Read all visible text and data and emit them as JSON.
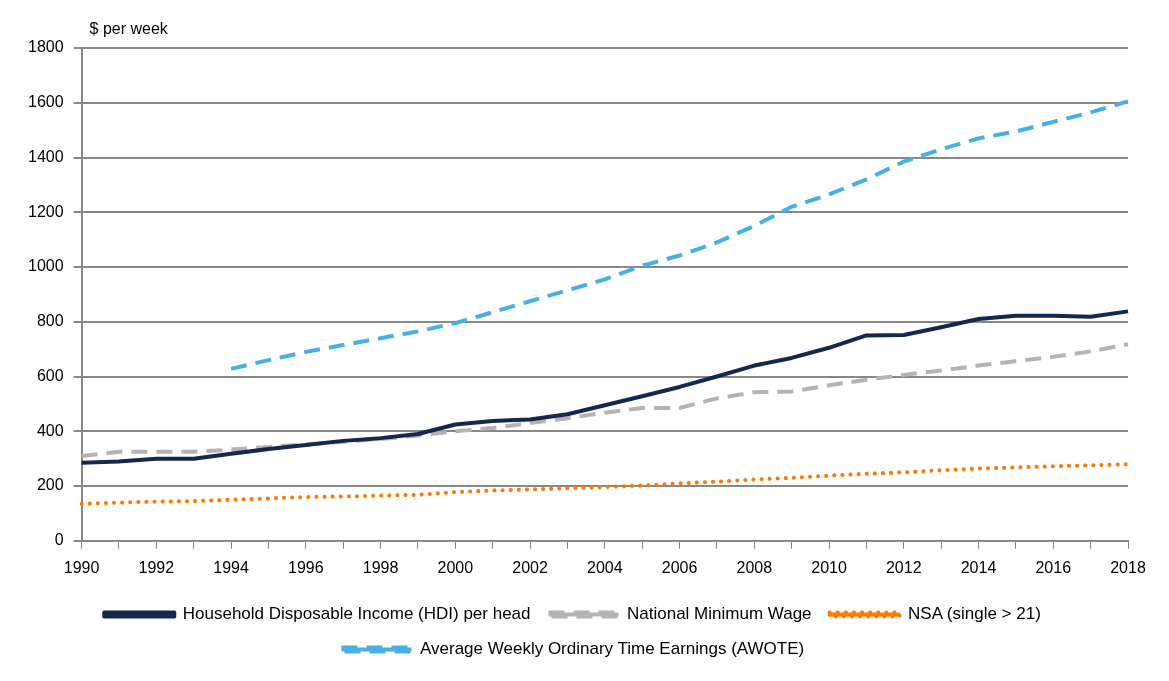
{
  "chart_data": {
    "type": "line",
    "ylabel": "$ per week",
    "categories": [
      "1990",
      null,
      "1992",
      null,
      "1994",
      null,
      "1996",
      null,
      "1998",
      null,
      "2000",
      null,
      "2002",
      null,
      "2004",
      null,
      "2006",
      null,
      "2008",
      null,
      "2010",
      null,
      "2012",
      null,
      "2014",
      null,
      "2016",
      null,
      "2018"
    ],
    "series": [
      {
        "name": "Household Disposable Income (HDI) per head",
        "color": "#14284b",
        "line_style": "solid",
        "values": [
          285,
          290,
          300,
          300,
          318,
          335,
          350,
          365,
          375,
          390,
          425,
          438,
          443,
          462,
          495,
          528,
          562,
          600,
          640,
          668,
          705,
          750,
          752,
          780,
          810,
          822,
          822,
          818,
          838
        ]
      },
      {
        "name": "National Minimum Wage",
        "color": "#b4b4b4",
        "line_style": "dashed",
        "values": [
          310,
          325,
          325,
          325,
          333,
          343,
          352,
          362,
          372,
          385,
          400,
          412,
          430,
          448,
          468,
          485,
          485,
          520,
          543,
          545,
          568,
          588,
          606,
          622,
          640,
          656,
          672,
          692,
          718
        ]
      },
      {
        "name": "NSA (single > 21)",
        "color": "#ff7800",
        "line_style": "dotted",
        "values": [
          135,
          140,
          143,
          145,
          150,
          155,
          160,
          162,
          165,
          168,
          178,
          184,
          188,
          192,
          197,
          202,
          210,
          216,
          224,
          230,
          238,
          245,
          250,
          258,
          264,
          268,
          272,
          276,
          280
        ]
      },
      {
        "name": "Average Weekly Ordinary Time Earnings (AWOTE)",
        "color": "#46b0e3",
        "line_style": "dashed",
        "values": [
          null,
          null,
          null,
          null,
          628,
          660,
          690,
          715,
          740,
          765,
          795,
          835,
          875,
          915,
          955,
          1005,
          1042,
          1090,
          1150,
          1220,
          1265,
          1320,
          1385,
          1430,
          1470,
          1495,
          1530,
          1565,
          1605
        ]
      }
    ],
    "ylim": [
      0,
      1800
    ],
    "yticks": [
      0,
      200,
      400,
      600,
      800,
      1000,
      1200,
      1400,
      1600,
      1800
    ],
    "grid": "y",
    "legend": "bottom",
    "marker": "none"
  }
}
